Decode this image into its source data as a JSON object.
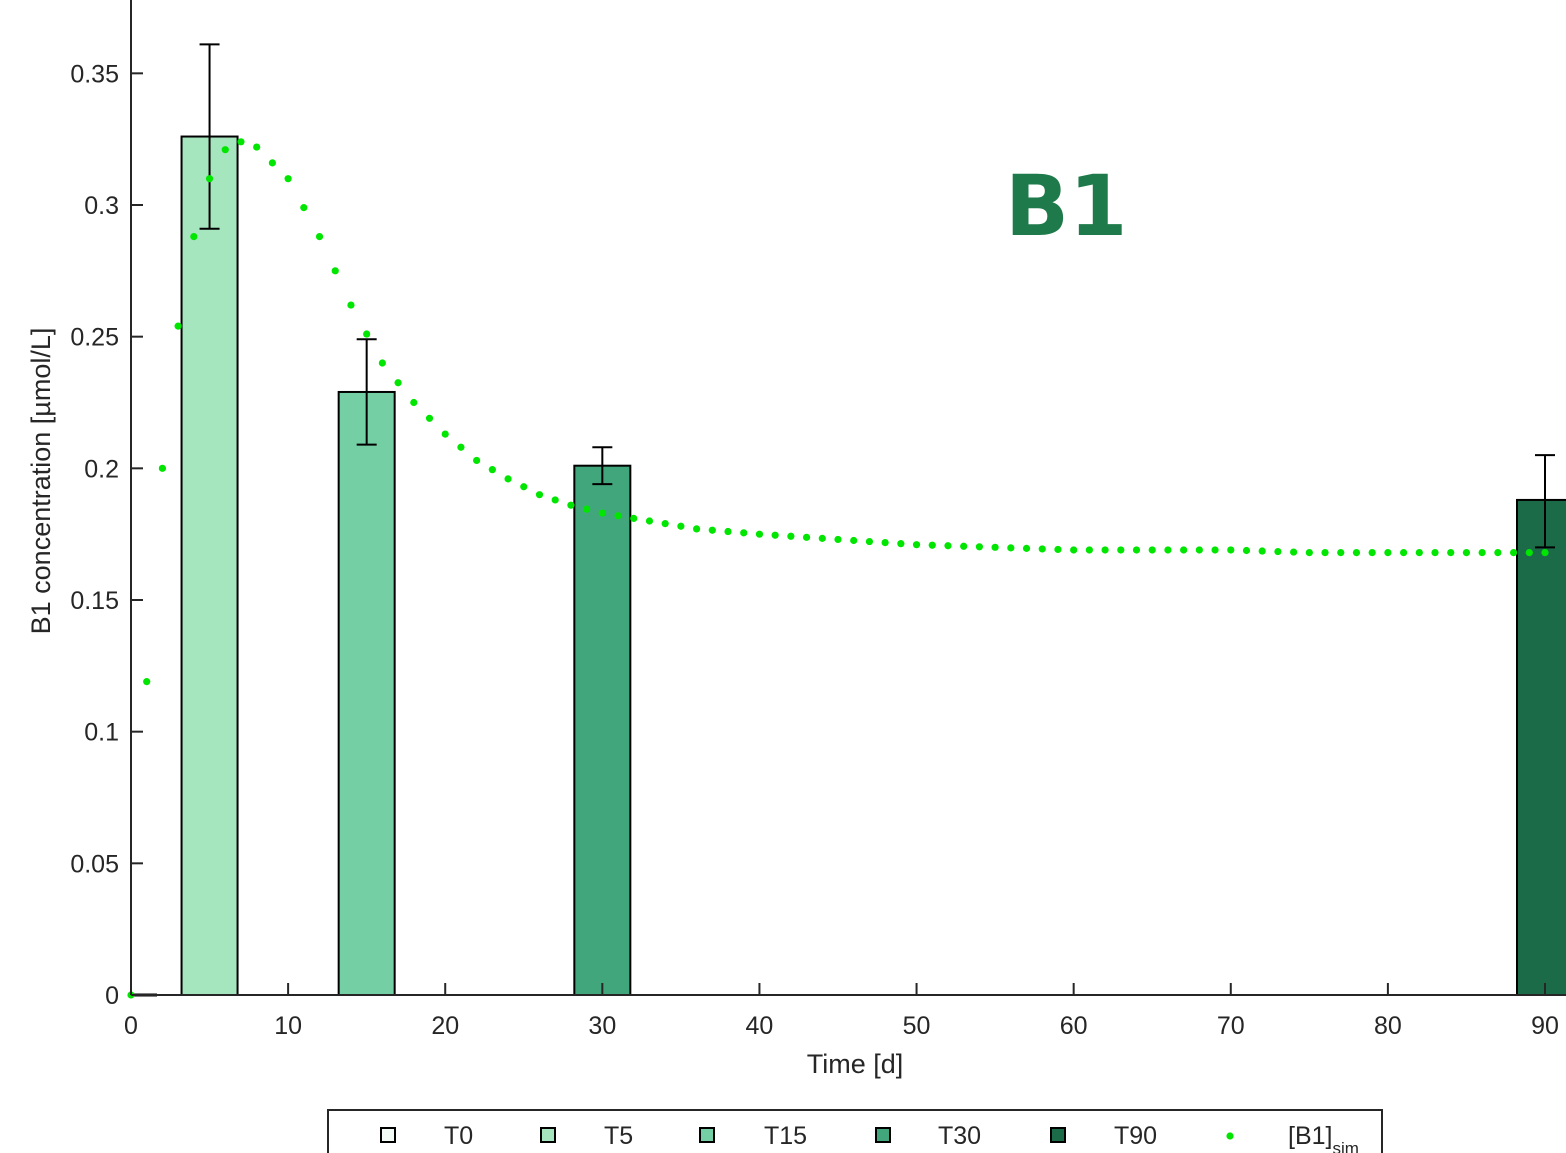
{
  "panel_label": "B1",
  "chart_data": {
    "type": "bar",
    "xlabel": "Time [d]",
    "ylabel": "B1 concentration [µmol/L]",
    "xlim": [
      0,
      90
    ],
    "ylim": [
      0,
      0.38
    ],
    "x_ticks": [
      0,
      10,
      20,
      30,
      40,
      50,
      60,
      70,
      80,
      90
    ],
    "x_tick_labels": [
      "0",
      "10",
      "20",
      "30",
      "40",
      "50",
      "60",
      "70",
      "80",
      "90"
    ],
    "y_ticks": [
      0,
      0.05,
      0.1,
      0.15,
      0.2,
      0.25,
      0.3,
      0.35
    ],
    "y_tick_labels": [
      "0",
      "0.05",
      "0.1",
      "0.15",
      "0.2",
      "0.25",
      "0.3",
      "0.35"
    ],
    "bars": [
      {
        "name": "T0",
        "x": 0,
        "value": 0.0,
        "err_low": 0.0,
        "err_high": 0.0,
        "color": "#f2fbf5"
      },
      {
        "name": "T5",
        "x": 5,
        "value": 0.326,
        "err_low": 0.291,
        "err_high": 0.361,
        "color": "#a6e6bf"
      },
      {
        "name": "T15",
        "x": 15,
        "value": 0.229,
        "err_low": 0.209,
        "err_high": 0.249,
        "color": "#74d0a4"
      },
      {
        "name": "T30",
        "x": 30,
        "value": 0.201,
        "err_low": 0.194,
        "err_high": 0.208,
        "color": "#41a67b"
      },
      {
        "name": "T90",
        "x": 90,
        "value": 0.188,
        "err_low": 0.17,
        "err_high": 0.205,
        "color": "#1b6b49"
      }
    ],
    "simulation": {
      "name": "[B1]",
      "name_subscript": "sim",
      "color": "#00e600",
      "x": [
        0,
        1,
        2,
        3,
        4,
        5,
        6,
        7,
        8,
        10,
        12,
        14,
        16,
        18,
        20,
        22,
        24,
        26,
        28,
        30,
        32,
        34,
        36,
        38,
        40,
        45,
        50,
        55,
        60,
        65,
        70,
        75,
        80,
        85,
        90
      ],
      "y": [
        0.0,
        0.119,
        0.2,
        0.254,
        0.288,
        0.31,
        0.321,
        0.324,
        0.322,
        0.31,
        0.288,
        0.262,
        0.24,
        0.225,
        0.213,
        0.203,
        0.196,
        0.19,
        0.186,
        0.183,
        0.181,
        0.179,
        0.177,
        0.176,
        0.175,
        0.173,
        0.171,
        0.17,
        0.169,
        0.169,
        0.169,
        0.168,
        0.168,
        0.168,
        0.168
      ]
    },
    "legend": {
      "placement": "bottom",
      "entries": [
        {
          "label": "T0",
          "color": "#f2fbf5",
          "marker": "square"
        },
        {
          "label": "T5",
          "color": "#a6e6bf",
          "marker": "square"
        },
        {
          "label": "T15",
          "color": "#74d0a4",
          "marker": "square"
        },
        {
          "label": "T30",
          "color": "#41a67b",
          "marker": "square"
        },
        {
          "label": "T90",
          "color": "#1b6b49",
          "marker": "square"
        },
        {
          "label": "[B1]",
          "subscript": "sim",
          "color": "#00e600",
          "marker": "dot"
        }
      ]
    },
    "grid": false
  }
}
